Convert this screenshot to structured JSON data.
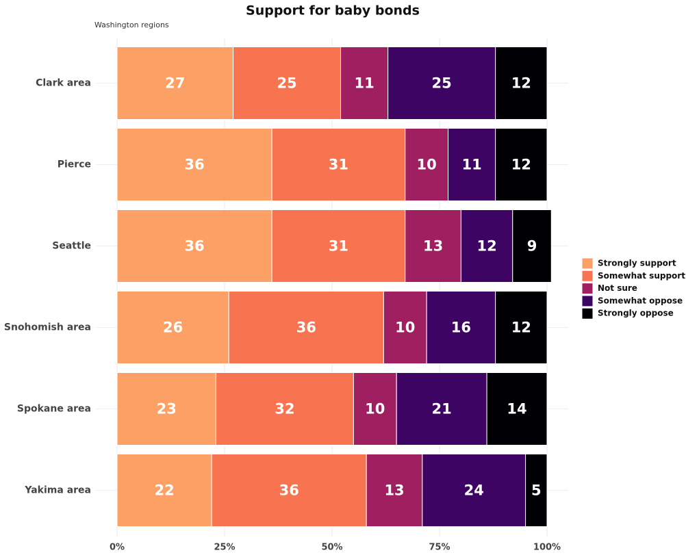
{
  "chart_data": {
    "type": "stacked-barh",
    "title": "Support for baby bonds",
    "subtitle": "Washington regions",
    "categories": [
      "Clark area",
      "Pierce",
      "Seattle",
      "Snohomish area",
      "Spokane area",
      "Yakima area"
    ],
    "series": [
      {
        "name": "Strongly support",
        "color": "#fca065",
        "values": [
          27,
          36,
          36,
          26,
          23,
          22
        ]
      },
      {
        "name": "Somewhat support",
        "color": "#f8734f",
        "values": [
          25,
          31,
          31,
          36,
          32,
          36
        ]
      },
      {
        "name": "Not sure",
        "color": "#a01f61",
        "values": [
          11,
          10,
          13,
          10,
          10,
          13
        ]
      },
      {
        "name": "Somewhat oppose",
        "color": "#3e0464",
        "values": [
          25,
          11,
          12,
          16,
          21,
          24
        ]
      },
      {
        "name": "Strongly oppose",
        "color": "#000004",
        "values": [
          12,
          12,
          9,
          12,
          14,
          5
        ]
      }
    ],
    "xlim": [
      0,
      100
    ],
    "xticks": [
      {
        "value": 0,
        "label": "0%"
      },
      {
        "value": 25,
        "label": "25%"
      },
      {
        "value": 50,
        "label": "50%"
      },
      {
        "value": 75,
        "label": "75%"
      },
      {
        "value": 100,
        "label": "100%"
      }
    ],
    "grid": true,
    "legend": "right"
  }
}
